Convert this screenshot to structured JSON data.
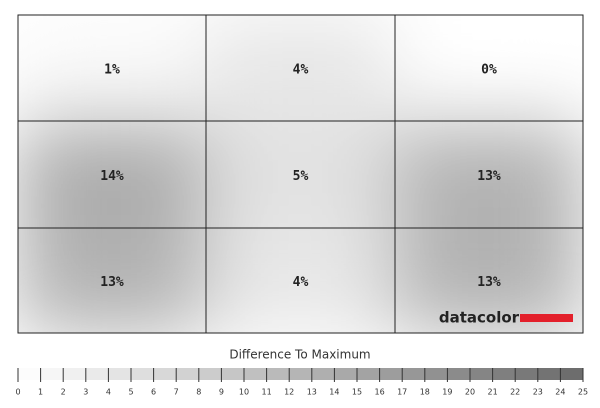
{
  "chart_data": {
    "type": "heatmap",
    "grid": [
      [
        1,
        4,
        0
      ],
      [
        14,
        5,
        13
      ],
      [
        13,
        4,
        13
      ]
    ],
    "value_labels": [
      [
        "1%",
        "4%",
        "0%"
      ],
      [
        "14%",
        "5%",
        "13%"
      ],
      [
        "13%",
        "4%",
        "13%"
      ]
    ],
    "colors": [
      "#ffffff",
      "#6a6a6a"
    ],
    "brand": "datacolor",
    "brand_color": "#e3202b",
    "colorbar": {
      "title": "Difference To Maximum",
      "lim": [
        0,
        25
      ],
      "ticks": [
        0,
        1,
        2,
        3,
        4,
        5,
        6,
        7,
        8,
        9,
        10,
        11,
        12,
        13,
        14,
        15,
        16,
        17,
        18,
        19,
        20,
        21,
        22,
        23,
        24,
        25
      ]
    }
  }
}
